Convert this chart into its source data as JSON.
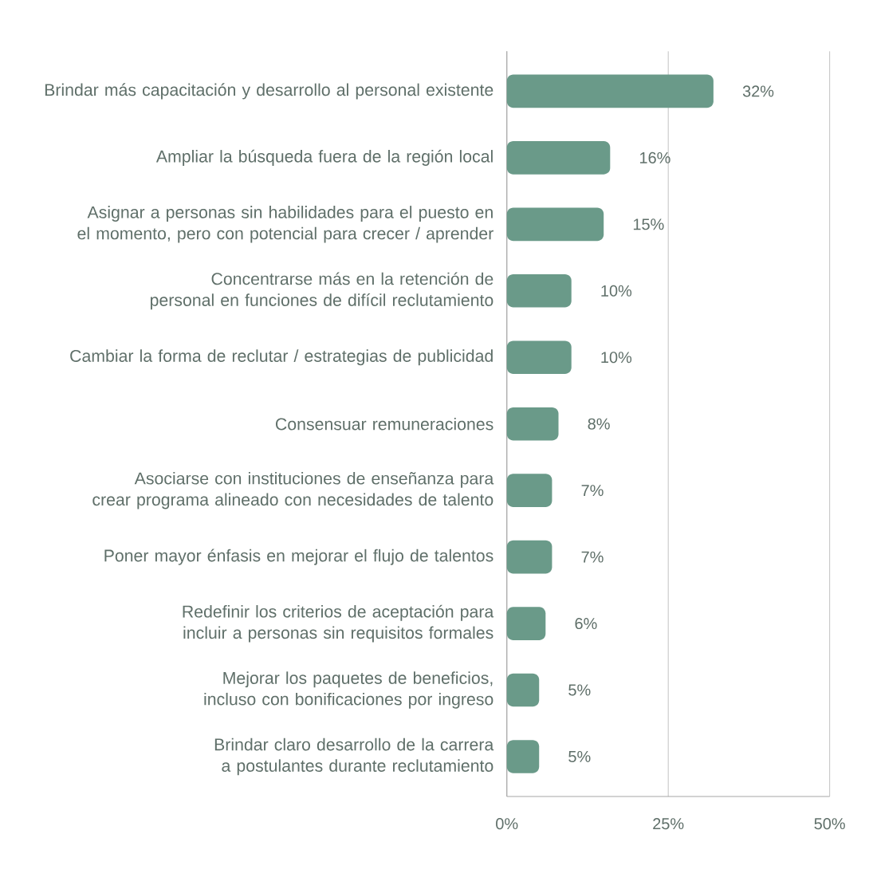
{
  "chart_data": {
    "type": "bar",
    "orientation": "horizontal",
    "categories": [
      "Brindar más capacitación y desarrollo al personal existente",
      "Ampliar la búsqueda fuera de la región local",
      "Asignar a personas sin habilidades para el puesto en el momento, pero con potencial para crecer / aprender",
      "Concentrarse más en la retención de personal en funciones de difícil reclutamiento",
      "Cambiar la forma de reclutar / estrategias de publicidad",
      "Consensuar remuneraciones",
      "Asociarse con instituciones de enseñanza para crear programa alineado con necesidades de talento",
      "Poner mayor énfasis en mejorar el flujo de talentos",
      "Redefinir los criterios de aceptación para incluir a personas sin requisitos formales",
      "Mejorar los paquetes de beneficios, incluso con bonificaciones por ingreso",
      "Brindar claro desarrollo de la carrera a postulantes durante reclutamiento"
    ],
    "values": [
      32,
      16,
      15,
      10,
      10,
      8,
      7,
      7,
      6,
      5,
      5
    ],
    "value_labels": [
      "32%",
      "16%",
      "15%",
      "10%",
      "10%",
      "8%",
      "7%",
      "7%",
      "6%",
      "5%",
      "5%"
    ],
    "color": "#6a9a89",
    "xlim": [
      0,
      50
    ],
    "xticks": [
      {
        "value": 0,
        "label": "0%"
      },
      {
        "value": 25,
        "label": "25%"
      },
      {
        "value": 50,
        "label": "50%"
      }
    ],
    "grid": "x"
  }
}
